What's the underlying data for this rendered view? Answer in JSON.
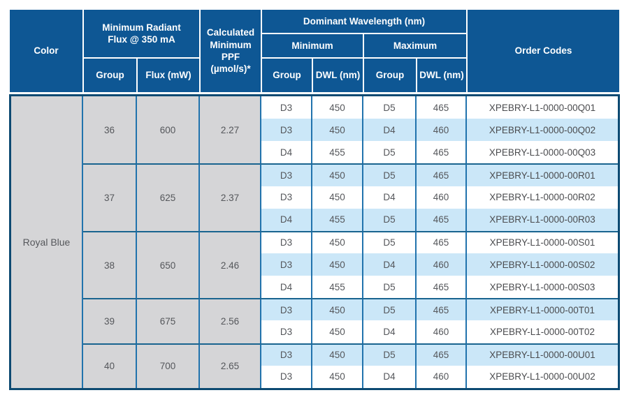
{
  "table": {
    "header": {
      "color": "Color",
      "min_radiant_flux": "Minimum Radiant Flux @ 350 mA",
      "group": "Group",
      "flux_mw": "Flux (mW)",
      "calc_min_ppf": "Calculated Minimum PPF (µmol/s)*",
      "dominant_wavelength": "Dominant Wavelength (nm)",
      "minimum": "Minimum",
      "maximum": "Maximum",
      "dwl_nm": "DWL (nm)",
      "order_codes": "Order Codes"
    },
    "color_label": "Royal Blue",
    "groups": [
      {
        "group": "36",
        "flux": "600",
        "ppf": "2.27"
      },
      {
        "group": "37",
        "flux": "625",
        "ppf": "2.37"
      },
      {
        "group": "38",
        "flux": "650",
        "ppf": "2.46"
      },
      {
        "group": "39",
        "flux": "675",
        "ppf": "2.56"
      },
      {
        "group": "40",
        "flux": "700",
        "ppf": "2.65"
      }
    ],
    "rows": [
      {
        "min_group": "D3",
        "min_dwl": "450",
        "max_group": "D5",
        "max_dwl": "465",
        "order_code": "XPEBRY-L1-0000-00Q01"
      },
      {
        "min_group": "D3",
        "min_dwl": "450",
        "max_group": "D4",
        "max_dwl": "460",
        "order_code": "XPEBRY-L1-0000-00Q02"
      },
      {
        "min_group": "D4",
        "min_dwl": "455",
        "max_group": "D5",
        "max_dwl": "465",
        "order_code": "XPEBRY-L1-0000-00Q03"
      },
      {
        "min_group": "D3",
        "min_dwl": "450",
        "max_group": "D5",
        "max_dwl": "465",
        "order_code": "XPEBRY-L1-0000-00R01"
      },
      {
        "min_group": "D3",
        "min_dwl": "450",
        "max_group": "D4",
        "max_dwl": "460",
        "order_code": "XPEBRY-L1-0000-00R02"
      },
      {
        "min_group": "D4",
        "min_dwl": "455",
        "max_group": "D5",
        "max_dwl": "465",
        "order_code": "XPEBRY-L1-0000-00R03"
      },
      {
        "min_group": "D3",
        "min_dwl": "450",
        "max_group": "D5",
        "max_dwl": "465",
        "order_code": "XPEBRY-L1-0000-00S01"
      },
      {
        "min_group": "D3",
        "min_dwl": "450",
        "max_group": "D4",
        "max_dwl": "460",
        "order_code": "XPEBRY-L1-0000-00S02"
      },
      {
        "min_group": "D4",
        "min_dwl": "455",
        "max_group": "D5",
        "max_dwl": "465",
        "order_code": "XPEBRY-L1-0000-00S03"
      },
      {
        "min_group": "D3",
        "min_dwl": "450",
        "max_group": "D5",
        "max_dwl": "465",
        "order_code": "XPEBRY-L1-0000-00T01"
      },
      {
        "min_group": "D3",
        "min_dwl": "450",
        "max_group": "D4",
        "max_dwl": "460",
        "order_code": "XPEBRY-L1-0000-00T02"
      },
      {
        "min_group": "D3",
        "min_dwl": "450",
        "max_group": "D5",
        "max_dwl": "465",
        "order_code": "XPEBRY-L1-0000-00U01"
      },
      {
        "min_group": "D3",
        "min_dwl": "450",
        "max_group": "D4",
        "max_dwl": "460",
        "order_code": "XPEBRY-L1-0000-00U02"
      }
    ],
    "colors": {
      "header_bg": "#0e5794",
      "header_text": "#ffffff",
      "row_alt_blue": "#cbe7f8",
      "gray_cell": "#d5d5d7",
      "column_line": "#2173ad",
      "group_line": "#19648f",
      "outer_border": "#0d4a72",
      "body_text": "#55575b"
    }
  }
}
